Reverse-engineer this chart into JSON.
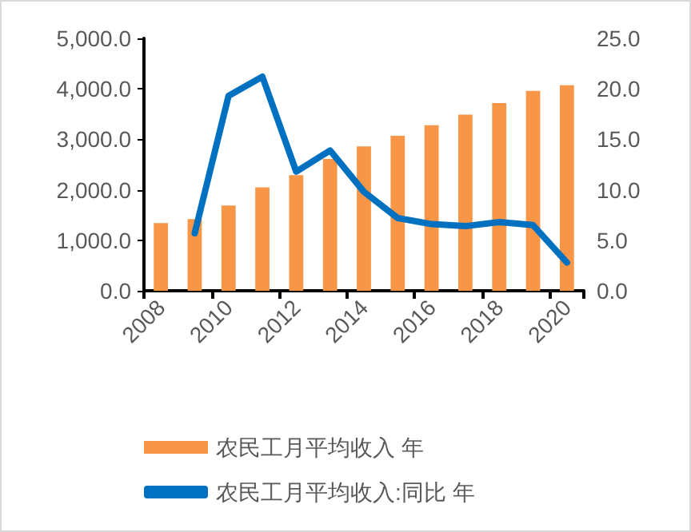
{
  "chart_data": {
    "type": "bar",
    "categories": [
      "2008",
      null,
      "2010",
      null,
      "2012",
      null,
      "2014",
      null,
      "2016",
      null,
      "2018",
      null,
      "2020"
    ],
    "series": [
      {
        "name": "农民工月平均收入 年",
        "color": "#f79646",
        "values": [
          1340,
          1420,
          1690,
          2050,
          2290,
          2610,
          2860,
          3070,
          3280,
          3490,
          3720,
          3960,
          4070
        ]
      },
      {
        "name": "农民工月平均收入:同比 年",
        "type": "line",
        "axis": "y2",
        "color": "#0070c0",
        "values": [
          null,
          5.7,
          19.3,
          21.2,
          11.8,
          13.9,
          9.8,
          7.2,
          6.6,
          6.4,
          6.8,
          6.5,
          2.8
        ]
      }
    ],
    "ylim": [
      0,
      5000
    ],
    "yticks": [
      {
        "value": 0,
        "label": "0.0"
      },
      {
        "value": 1000,
        "label": "1,000.0"
      },
      {
        "value": 2000,
        "label": "2,000.0"
      },
      {
        "value": 3000,
        "label": "3,000.0"
      },
      {
        "value": 4000,
        "label": "4,000.0"
      },
      {
        "value": 5000,
        "label": "5,000.0"
      }
    ],
    "y2lim": [
      0,
      25
    ],
    "y2ticks": [
      {
        "value": 0,
        "label": "0.0"
      },
      {
        "value": 5,
        "label": "5.0"
      },
      {
        "value": 10,
        "label": "10.0"
      },
      {
        "value": 15,
        "label": "15.0"
      },
      {
        "value": 20,
        "label": "20.0"
      },
      {
        "value": 25,
        "label": "25.0"
      }
    ],
    "grid": false,
    "legend": "bottom",
    "marker": "none",
    "line_style": "solid"
  }
}
